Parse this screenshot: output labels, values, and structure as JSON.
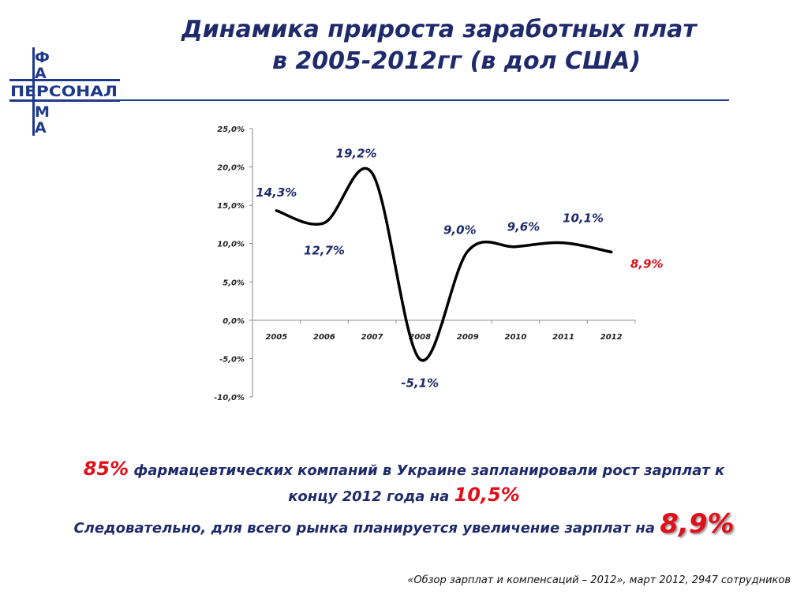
{
  "logo": {
    "vertical": [
      "Ф",
      "А",
      "М",
      "А"
    ],
    "horizontal": "ПЕРСОНАЛ",
    "color": "#1f3a8a"
  },
  "title": {
    "line1": "Динамика прироста заработных плат",
    "line2": "в 2005-2012гг (в дол США)"
  },
  "chart_data": {
    "type": "line",
    "categories": [
      "2005",
      "2006",
      "2007",
      "2008",
      "2009",
      "2010",
      "2011",
      "2012"
    ],
    "values": [
      14.3,
      12.7,
      19.2,
      -5.1,
      9.0,
      9.6,
      10.1,
      8.9
    ],
    "labels": [
      "14,3%",
      "12,7%",
      "19,2%",
      "-5,1%",
      "9,0%",
      "9,6%",
      "10,1%",
      "8,9%"
    ],
    "label_colors": [
      "#1f2a6b",
      "#1f2a6b",
      "#1f2a6b",
      "#1f2a6b",
      "#1f2a6b",
      "#1f2a6b",
      "#1f2a6b",
      "#e0101a"
    ],
    "y_ticks": [
      "25,0%",
      "20,0%",
      "15,0%",
      "10,0%",
      "5,0%",
      "0,0%",
      "-5,0%",
      "-10,0%"
    ],
    "ylim": [
      -10,
      25
    ],
    "grid": false,
    "line_color": "#000000",
    "curve": "smooth"
  },
  "text": {
    "line1_pct": "85%",
    "line1_rest": " фармацевтических компаний в Украине запланировали рост зарплат к",
    "line2_text": "концу 2012 года на ",
    "line2_pct": "10,5%",
    "line3_text": "Следовательно, для всего рынка планируется увеличение зарплат на ",
    "line3_pct": "8,9%"
  },
  "source": "«Обзор зарплат и компенсаций – 2012», март 2012, 2947 сотрудников"
}
